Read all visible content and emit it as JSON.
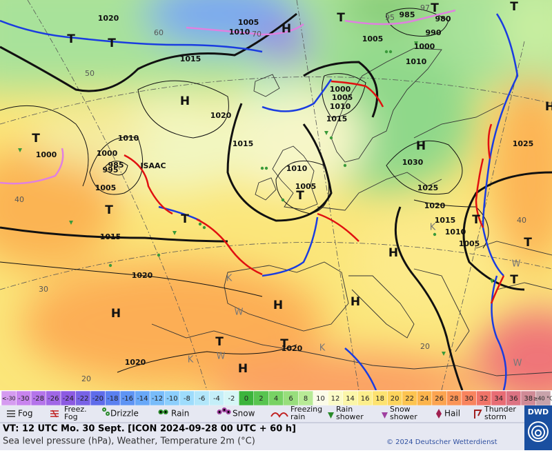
{
  "map": {
    "pressure_labels": [
      "1020",
      "1005",
      "1010",
      "1015",
      "95",
      "985",
      "97",
      "980",
      "990",
      "1005",
      "1000",
      "1010",
      "1000",
      "1005",
      "1010",
      "1015",
      "1020",
      "1015",
      "1010",
      "1000",
      "985",
      "995",
      "1000",
      "1005",
      "1010",
      "1005",
      "1030",
      "1025",
      "1025",
      "1020",
      "1015",
      "1010",
      "1005",
      "1015",
      "1020",
      "1020",
      "1020",
      "50",
      "60",
      "70",
      "40",
      "40",
      "30",
      "20",
      "20"
    ],
    "systems": [
      "H",
      "H",
      "H",
      "H",
      "H",
      "H",
      "H",
      "H",
      "H",
      "T",
      "T",
      "T",
      "T",
      "T",
      "T",
      "T",
      "T",
      "T",
      "T",
      "T",
      "T",
      "T",
      "T",
      "K",
      "K",
      "K",
      "K",
      "W",
      "W",
      "W",
      "W"
    ],
    "storm_name": "ISAAC"
  },
  "scale": {
    "items": [
      {
        "label": "<-30",
        "color": "#d59bf0"
      },
      {
        "label": "-30",
        "color": "#c884ee"
      },
      {
        "label": "-28",
        "color": "#b474ea"
      },
      {
        "label": "-26",
        "color": "#a066e6"
      },
      {
        "label": "-24",
        "color": "#8c5ae2"
      },
      {
        "label": "-22",
        "color": "#7862e6"
      },
      {
        "label": "-20",
        "color": "#5f6cea"
      },
      {
        "label": "-18",
        "color": "#5a80f0"
      },
      {
        "label": "-16",
        "color": "#5e94f4"
      },
      {
        "label": "-14",
        "color": "#68a8f8"
      },
      {
        "label": "-12",
        "color": "#78bcfa"
      },
      {
        "label": "-10",
        "color": "#8ccefc"
      },
      {
        "label": "-8",
        "color": "#9edcfc"
      },
      {
        "label": "-6",
        "color": "#b2e6fa"
      },
      {
        "label": "-4",
        "color": "#c4eef8"
      },
      {
        "label": "-2",
        "color": "#d6f6f6"
      },
      {
        "label": "0",
        "color": "#3cb43c"
      },
      {
        "label": "2",
        "color": "#58c450"
      },
      {
        "label": "4",
        "color": "#78d264"
      },
      {
        "label": "6",
        "color": "#98de7c"
      },
      {
        "label": "8",
        "color": "#b8ea96"
      },
      {
        "label": "10",
        "color": "#fbfbe8"
      },
      {
        "label": "12",
        "color": "#fbfbc8"
      },
      {
        "label": "14",
        "color": "#fbf6a8"
      },
      {
        "label": "16",
        "color": "#fcee8c"
      },
      {
        "label": "18",
        "color": "#fde270"
      },
      {
        "label": "20",
        "color": "#fdd45c"
      },
      {
        "label": "22",
        "color": "#fdc450"
      },
      {
        "label": "24",
        "color": "#fcb44c"
      },
      {
        "label": "26",
        "color": "#fca450"
      },
      {
        "label": "28",
        "color": "#fb9456"
      },
      {
        "label": "30",
        "color": "#f8845e"
      },
      {
        "label": "32",
        "color": "#f07468"
      },
      {
        "label": "34",
        "color": "#e86c74"
      },
      {
        "label": "36",
        "color": "#dc7282"
      },
      {
        "label": "38",
        "color": "#d08a96"
      },
      {
        "label": "≥40 °C",
        "color": "#c8a2aa"
      }
    ]
  },
  "legend": [
    "Fog",
    "Freez. Fog",
    "Drizzle",
    "Rain",
    "Snow",
    "Freezing rain",
    "Rain shower",
    "Snow shower",
    "Hail",
    "Thunder storm"
  ],
  "footer": {
    "valid_time": "VT: 12 UTC Mo.  30 Sept. [ICON 2024-09-28  00 UTC + 60 h]",
    "description": "Sea level pressure (hPa), Weather, Temperature 2m (°C)",
    "copyright": "© 2024 Deutscher Wetterdienst",
    "logo": "DWD"
  }
}
